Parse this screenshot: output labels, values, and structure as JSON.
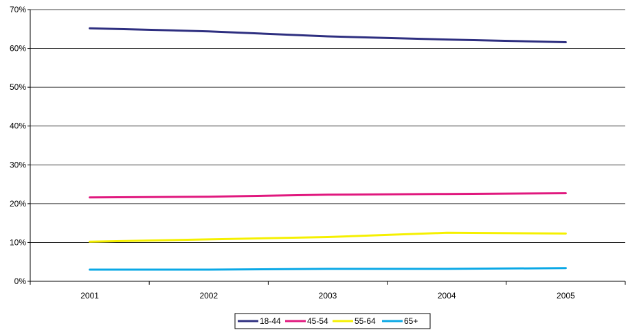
{
  "chart_data": {
    "type": "line",
    "title": "",
    "xlabel": "",
    "ylabel": "",
    "categories": [
      "2001",
      "2002",
      "2003",
      "2004",
      "2005"
    ],
    "ylim": [
      0,
      70
    ],
    "y_ticks": [
      0,
      10,
      20,
      30,
      40,
      50,
      60,
      70
    ],
    "y_tick_format": "%",
    "grid": "horizontal",
    "legend_position": "bottom",
    "series": [
      {
        "name": "18-44",
        "color": "#2e2f80",
        "values": [
          65.2,
          64.4,
          63.1,
          62.3,
          61.6
        ]
      },
      {
        "name": "45-54",
        "color": "#e0187e",
        "values": [
          21.6,
          21.8,
          22.3,
          22.5,
          22.7
        ]
      },
      {
        "name": "55-64",
        "color": "#f5f000",
        "values": [
          10.2,
          10.8,
          11.4,
          12.5,
          12.3
        ]
      },
      {
        "name": "65+",
        "color": "#0aa8e6",
        "values": [
          3.0,
          3.0,
          3.2,
          3.2,
          3.4
        ]
      }
    ]
  }
}
